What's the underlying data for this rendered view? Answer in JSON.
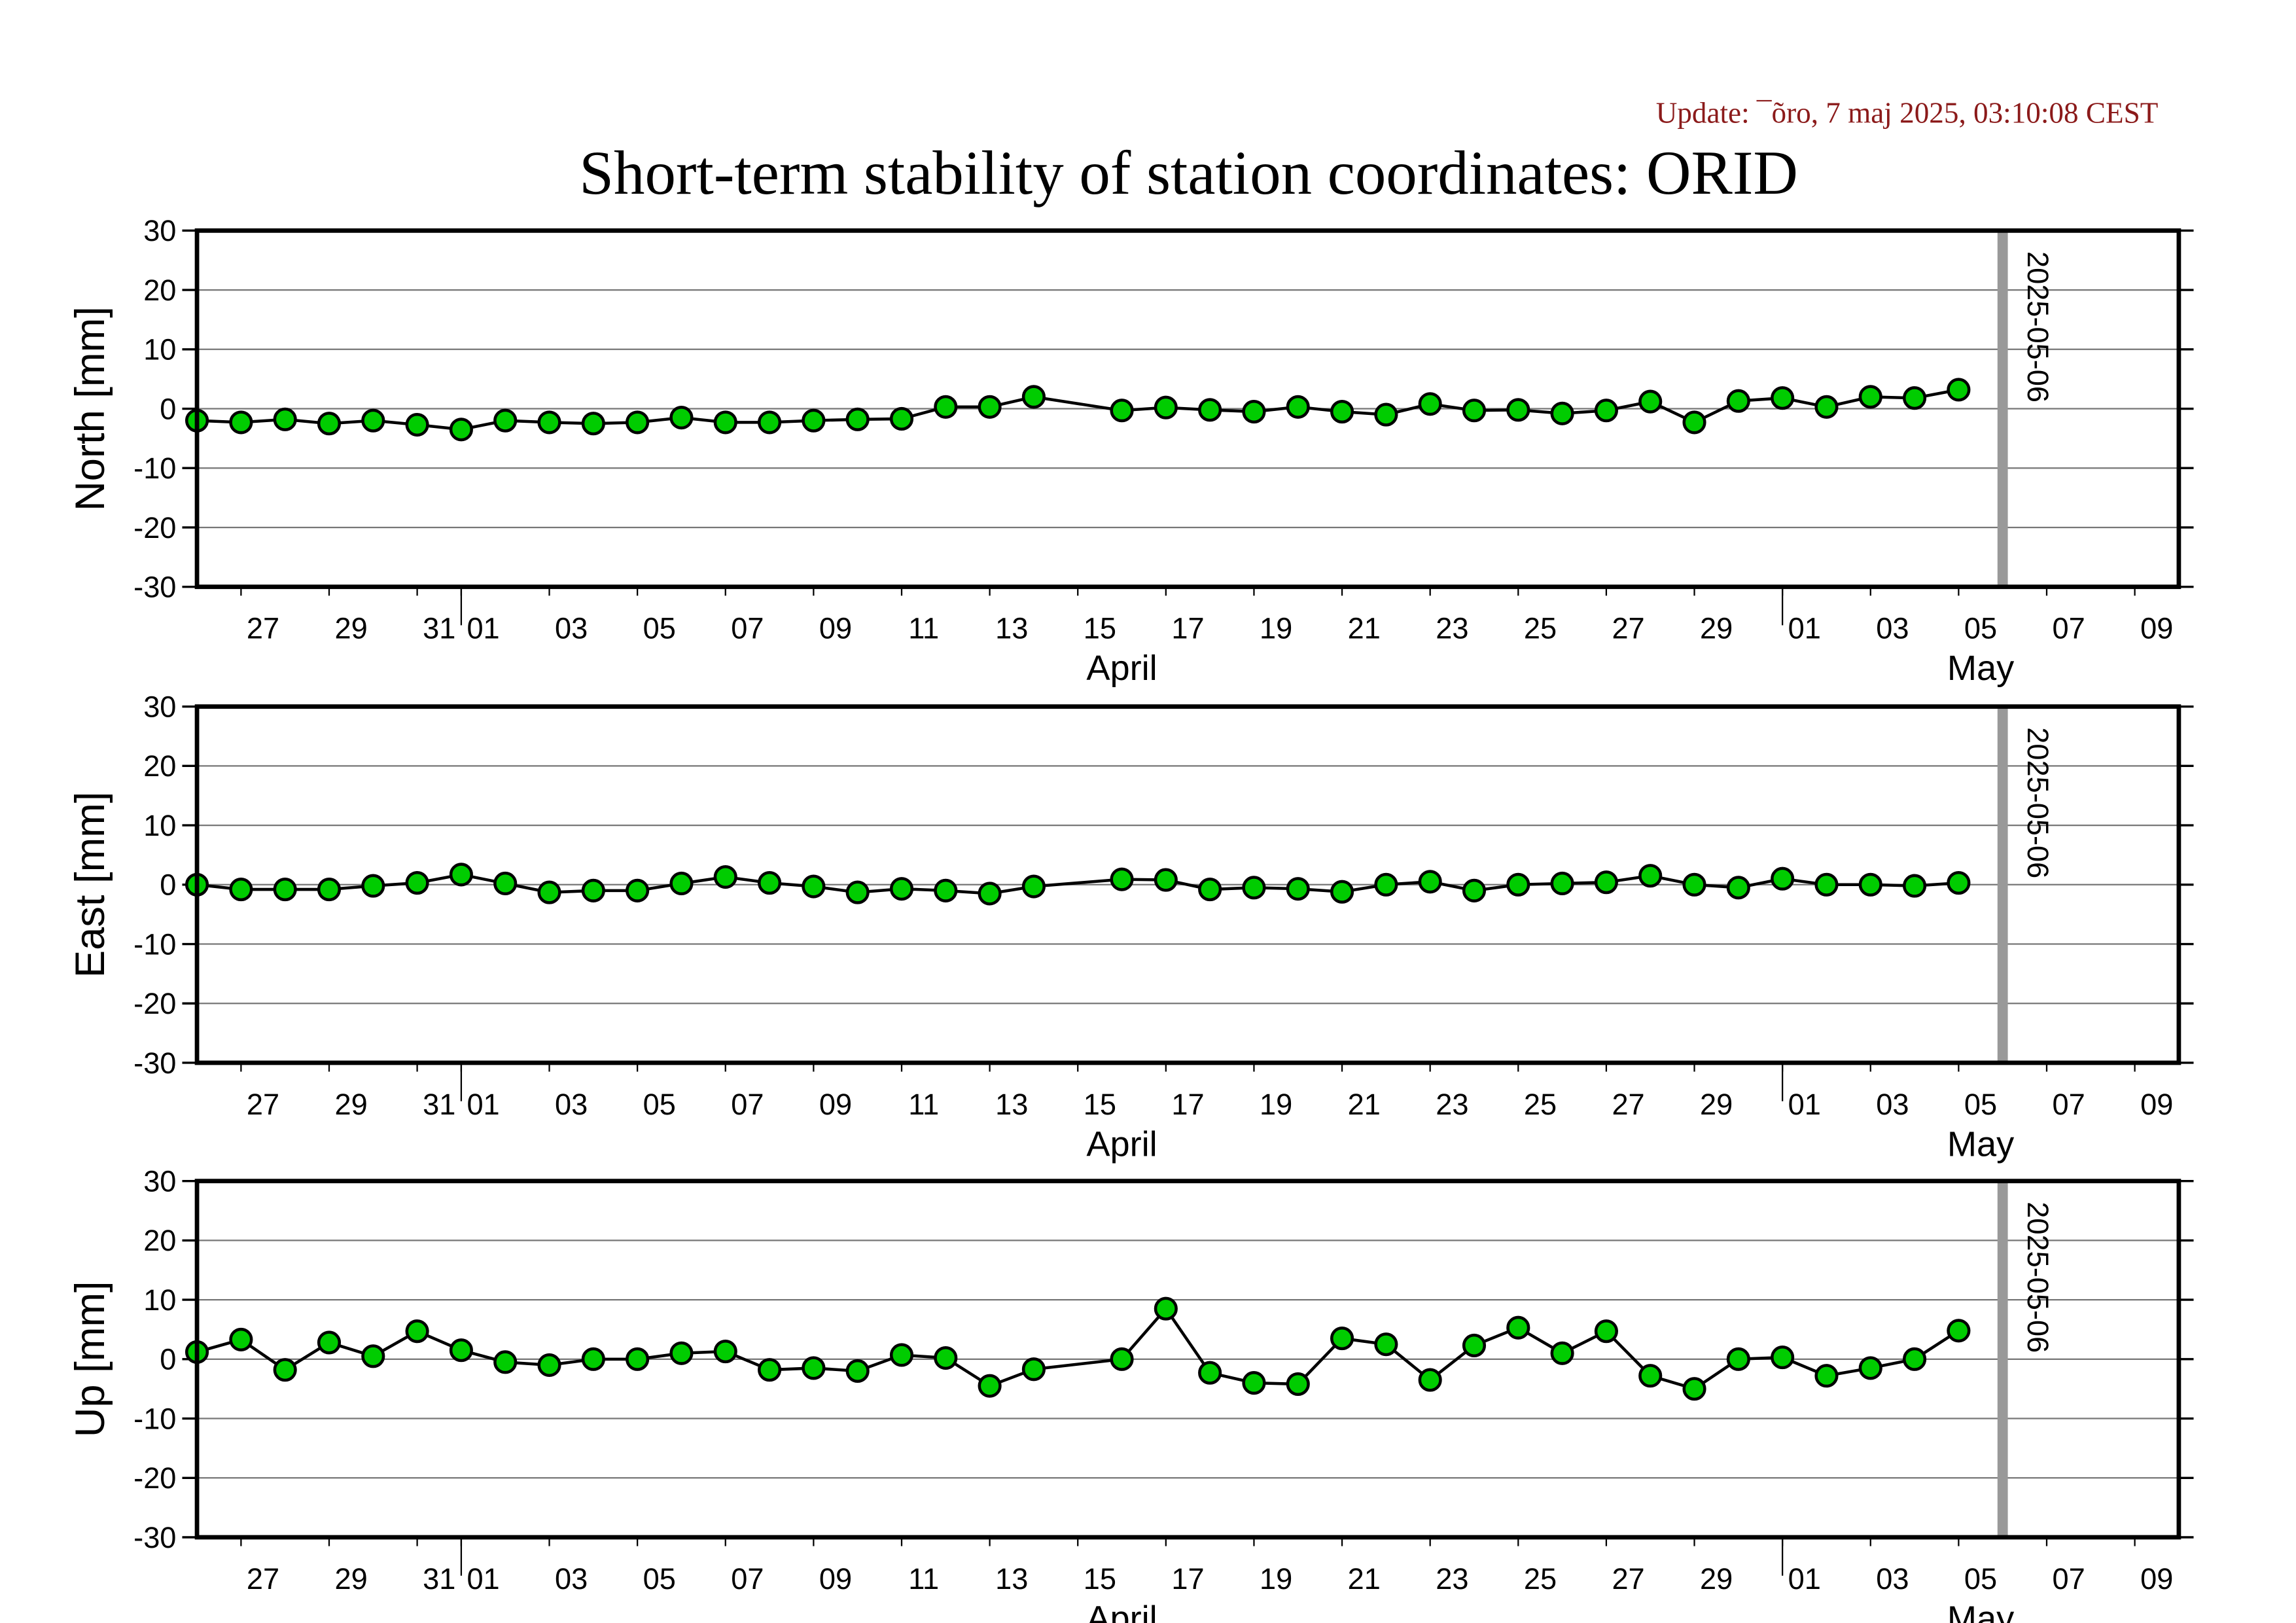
{
  "header": {
    "update": "Update: ¯õro, 7 maj 2025, 03:10:08 CEST",
    "title": "Short-term stability of station coordinates: ORID"
  },
  "chart_data": [
    {
      "type": "line",
      "ylabel": "North [mm]",
      "x": [
        "2025-03-26",
        "2025-03-27",
        "2025-03-28",
        "2025-03-29",
        "2025-03-30",
        "2025-03-31",
        "2025-04-01",
        "2025-04-02",
        "2025-04-03",
        "2025-04-04",
        "2025-04-05",
        "2025-04-06",
        "2025-04-07",
        "2025-04-08",
        "2025-04-09",
        "2025-04-10",
        "2025-04-11",
        "2025-04-12",
        "2025-04-13",
        "2025-04-14",
        "2025-04-16",
        "2025-04-17",
        "2025-04-18",
        "2025-04-19",
        "2025-04-20",
        "2025-04-21",
        "2025-04-22",
        "2025-04-23",
        "2025-04-24",
        "2025-04-25",
        "2025-04-26",
        "2025-04-27",
        "2025-04-28",
        "2025-04-29",
        "2025-04-30",
        "2025-05-01",
        "2025-05-02",
        "2025-05-03",
        "2025-05-04",
        "2025-05-05"
      ],
      "series": [
        {
          "color": "#00cc00",
          "line_color": "#000000",
          "values": [
            -2,
            -2.3,
            -1.8,
            -2.5,
            -2,
            -2.7,
            -3.5,
            -2,
            -2.3,
            -2.5,
            -2.3,
            -1.5,
            -2.3,
            -2.3,
            -2,
            -1.8,
            -1.7,
            0.3,
            0.3,
            2,
            -0.3,
            0.2,
            -0.2,
            -0.5,
            0.3,
            -0.5,
            -1,
            0.8,
            -0.3,
            -0.2,
            -0.8,
            -0.3,
            1.2,
            -2.3,
            1.3,
            1.8,
            0.3,
            2,
            1.8,
            3.2
          ]
        }
      ],
      "xlim": [
        "2025-03-26",
        "2025-05-10"
      ],
      "ylim": [
        -30,
        30
      ],
      "yticks": [
        -30,
        -20,
        -10,
        0,
        10,
        20,
        30
      ],
      "grid": true,
      "xticks": [
        {
          "value": "2025-03-27",
          "label": "27"
        },
        {
          "value": "2025-03-29",
          "label": "29"
        },
        {
          "value": "2025-03-31",
          "label": "31"
        },
        {
          "value": "2025-04-01",
          "label": "01"
        },
        {
          "value": "2025-04-03",
          "label": "03"
        },
        {
          "value": "2025-04-05",
          "label": "05"
        },
        {
          "value": "2025-04-07",
          "label": "07"
        },
        {
          "value": "2025-04-09",
          "label": "09"
        },
        {
          "value": "2025-04-11",
          "label": "11"
        },
        {
          "value": "2025-04-13",
          "label": "13"
        },
        {
          "value": "2025-04-15",
          "label": "15"
        },
        {
          "value": "2025-04-17",
          "label": "17"
        },
        {
          "value": "2025-04-19",
          "label": "19"
        },
        {
          "value": "2025-04-21",
          "label": "21"
        },
        {
          "value": "2025-04-23",
          "label": "23"
        },
        {
          "value": "2025-04-25",
          "label": "25"
        },
        {
          "value": "2025-04-27",
          "label": "27"
        },
        {
          "value": "2025-04-29",
          "label": "29"
        },
        {
          "value": "2025-05-01",
          "label": "01"
        },
        {
          "value": "2025-05-03",
          "label": "03"
        },
        {
          "value": "2025-05-05",
          "label": "05"
        },
        {
          "value": "2025-05-07",
          "label": "07"
        },
        {
          "value": "2025-05-09",
          "label": "09"
        }
      ],
      "month_ticks": [
        {
          "value": "2025-04-01",
          "label": "April"
        },
        {
          "value": "2025-05-01",
          "label": "May"
        }
      ],
      "vline": {
        "x": "2025-05-06",
        "label": "2025-05-06",
        "color": "#999999"
      }
    },
    {
      "type": "line",
      "ylabel": "East [mm]",
      "x": [
        "2025-03-26",
        "2025-03-27",
        "2025-03-28",
        "2025-03-29",
        "2025-03-30",
        "2025-03-31",
        "2025-04-01",
        "2025-04-02",
        "2025-04-03",
        "2025-04-04",
        "2025-04-05",
        "2025-04-06",
        "2025-04-07",
        "2025-04-08",
        "2025-04-09",
        "2025-04-10",
        "2025-04-11",
        "2025-04-12",
        "2025-04-13",
        "2025-04-14",
        "2025-04-16",
        "2025-04-17",
        "2025-04-18",
        "2025-04-19",
        "2025-04-20",
        "2025-04-21",
        "2025-04-22",
        "2025-04-23",
        "2025-04-24",
        "2025-04-25",
        "2025-04-26",
        "2025-04-27",
        "2025-04-28",
        "2025-04-29",
        "2025-04-30",
        "2025-05-01",
        "2025-05-02",
        "2025-05-03",
        "2025-05-04",
        "2025-05-05"
      ],
      "series": [
        {
          "color": "#00cc00",
          "line_color": "#000000",
          "values": [
            0,
            -0.8,
            -0.8,
            -0.8,
            -0.2,
            0.3,
            1.7,
            0.2,
            -1.3,
            -1,
            -1,
            0.2,
            1.3,
            0.3,
            -0.3,
            -1.3,
            -0.7,
            -1,
            -1.5,
            -0.3,
            0.9,
            0.8,
            -0.8,
            -0.5,
            -0.7,
            -1.2,
            0,
            0.5,
            -1,
            0,
            0.2,
            0.4,
            1.5,
            0,
            -0.5,
            1,
            0,
            0,
            -0.2,
            0.3
          ]
        }
      ],
      "xlim": [
        "2025-03-26",
        "2025-05-10"
      ],
      "ylim": [
        -30,
        30
      ],
      "yticks": [
        -30,
        -20,
        -10,
        0,
        10,
        20,
        30
      ],
      "grid": true,
      "xticks": [
        {
          "value": "2025-03-27",
          "label": "27"
        },
        {
          "value": "2025-03-29",
          "label": "29"
        },
        {
          "value": "2025-03-31",
          "label": "31"
        },
        {
          "value": "2025-04-01",
          "label": "01"
        },
        {
          "value": "2025-04-03",
          "label": "03"
        },
        {
          "value": "2025-04-05",
          "label": "05"
        },
        {
          "value": "2025-04-07",
          "label": "07"
        },
        {
          "value": "2025-04-09",
          "label": "09"
        },
        {
          "value": "2025-04-11",
          "label": "11"
        },
        {
          "value": "2025-04-13",
          "label": "13"
        },
        {
          "value": "2025-04-15",
          "label": "15"
        },
        {
          "value": "2025-04-17",
          "label": "17"
        },
        {
          "value": "2025-04-19",
          "label": "19"
        },
        {
          "value": "2025-04-21",
          "label": "21"
        },
        {
          "value": "2025-04-23",
          "label": "23"
        },
        {
          "value": "2025-04-25",
          "label": "25"
        },
        {
          "value": "2025-04-27",
          "label": "27"
        },
        {
          "value": "2025-04-29",
          "label": "29"
        },
        {
          "value": "2025-05-01",
          "label": "01"
        },
        {
          "value": "2025-05-03",
          "label": "03"
        },
        {
          "value": "2025-05-05",
          "label": "05"
        },
        {
          "value": "2025-05-07",
          "label": "07"
        },
        {
          "value": "2025-05-09",
          "label": "09"
        }
      ],
      "month_ticks": [
        {
          "value": "2025-04-01",
          "label": "April"
        },
        {
          "value": "2025-05-01",
          "label": "May"
        }
      ],
      "vline": {
        "x": "2025-05-06",
        "label": "2025-05-06",
        "color": "#999999"
      }
    },
    {
      "type": "line",
      "ylabel": "Up [mm]",
      "x": [
        "2025-03-26",
        "2025-03-27",
        "2025-03-28",
        "2025-03-29",
        "2025-03-30",
        "2025-03-31",
        "2025-04-01",
        "2025-04-02",
        "2025-04-03",
        "2025-04-04",
        "2025-04-05",
        "2025-04-06",
        "2025-04-07",
        "2025-04-08",
        "2025-04-09",
        "2025-04-10",
        "2025-04-11",
        "2025-04-12",
        "2025-04-13",
        "2025-04-14",
        "2025-04-16",
        "2025-04-17",
        "2025-04-18",
        "2025-04-19",
        "2025-04-20",
        "2025-04-21",
        "2025-04-22",
        "2025-04-23",
        "2025-04-24",
        "2025-04-25",
        "2025-04-26",
        "2025-04-27",
        "2025-04-28",
        "2025-04-29",
        "2025-04-30",
        "2025-05-01",
        "2025-05-02",
        "2025-05-03",
        "2025-05-04",
        "2025-05-05"
      ],
      "series": [
        {
          "color": "#00cc00",
          "line_color": "#000000",
          "values": [
            1.2,
            3.3,
            -1.8,
            2.8,
            0.5,
            4.7,
            1.5,
            -0.5,
            -1,
            0,
            0,
            1,
            1.3,
            -1.8,
            -1.5,
            -2,
            0.7,
            0.2,
            -4.5,
            -1.7,
            0,
            8.5,
            -2.3,
            -4,
            -4.2,
            3.5,
            2.5,
            -3.5,
            2.3,
            5.3,
            1,
            4.7,
            -2.8,
            -5,
            0,
            0.3,
            -2.8,
            -1.5,
            0,
            4.8
          ]
        }
      ],
      "xlim": [
        "2025-03-26",
        "2025-05-10"
      ],
      "ylim": [
        -30,
        30
      ],
      "yticks": [
        -30,
        -20,
        -10,
        0,
        10,
        20,
        30
      ],
      "grid": true,
      "xticks": [
        {
          "value": "2025-03-27",
          "label": "27"
        },
        {
          "value": "2025-03-29",
          "label": "29"
        },
        {
          "value": "2025-03-31",
          "label": "31"
        },
        {
          "value": "2025-04-01",
          "label": "01"
        },
        {
          "value": "2025-04-03",
          "label": "03"
        },
        {
          "value": "2025-04-05",
          "label": "05"
        },
        {
          "value": "2025-04-07",
          "label": "07"
        },
        {
          "value": "2025-04-09",
          "label": "09"
        },
        {
          "value": "2025-04-11",
          "label": "11"
        },
        {
          "value": "2025-04-13",
          "label": "13"
        },
        {
          "value": "2025-04-15",
          "label": "15"
        },
        {
          "value": "2025-04-17",
          "label": "17"
        },
        {
          "value": "2025-04-19",
          "label": "19"
        },
        {
          "value": "2025-04-21",
          "label": "21"
        },
        {
          "value": "2025-04-23",
          "label": "23"
        },
        {
          "value": "2025-04-25",
          "label": "25"
        },
        {
          "value": "2025-04-27",
          "label": "27"
        },
        {
          "value": "2025-04-29",
          "label": "29"
        },
        {
          "value": "2025-05-01",
          "label": "01"
        },
        {
          "value": "2025-05-03",
          "label": "03"
        },
        {
          "value": "2025-05-05",
          "label": "05"
        },
        {
          "value": "2025-05-07",
          "label": "07"
        },
        {
          "value": "2025-05-09",
          "label": "09"
        }
      ],
      "month_ticks": [
        {
          "value": "2025-04-01",
          "label": "April"
        },
        {
          "value": "2025-05-01",
          "label": "May"
        }
      ],
      "vline": {
        "x": "2025-05-06",
        "label": "2025-05-06",
        "color": "#999999"
      }
    }
  ]
}
